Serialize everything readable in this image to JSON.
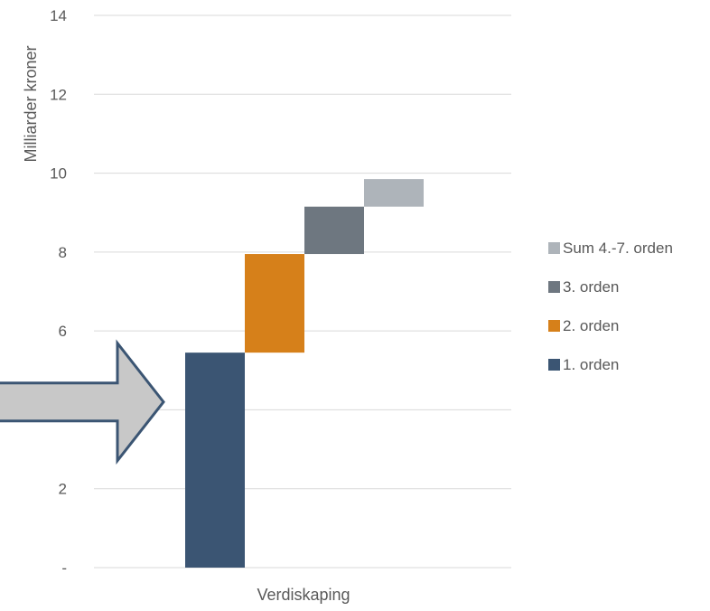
{
  "chart_data": {
    "type": "bar",
    "subtype": "stacked-waterfall",
    "categories": [
      "Verdiskaping"
    ],
    "ylabel": "Milliarder kroner",
    "xlabel": "",
    "ylim": [
      0,
      14
    ],
    "yticks": [
      {
        "value": 0,
        "label": "-"
      },
      {
        "value": 2,
        "label": "2"
      },
      {
        "value": 4,
        "label": ""
      },
      {
        "value": 6,
        "label": "6"
      },
      {
        "value": 8,
        "label": "8"
      },
      {
        "value": 10,
        "label": "10"
      },
      {
        "value": 12,
        "label": "12"
      },
      {
        "value": 14,
        "label": "14"
      }
    ],
    "grid": true,
    "legend_position": "right",
    "series": [
      {
        "name": "1. orden",
        "base": 0.0,
        "value": 5.45,
        "color": "#3b5573"
      },
      {
        "name": "2. orden",
        "base": 5.45,
        "value": 2.5,
        "color": "#d6801a"
      },
      {
        "name": "3. orden",
        "base": 7.95,
        "value": 1.2,
        "color": "#6e7780"
      },
      {
        "name": "Sum 4.-7. orden",
        "base": 9.15,
        "value": 0.7,
        "color": "#aeb4ba"
      }
    ],
    "annotation": {
      "shape": "arrow",
      "fill": "#c8c8c8",
      "stroke": "#3b5573"
    }
  }
}
